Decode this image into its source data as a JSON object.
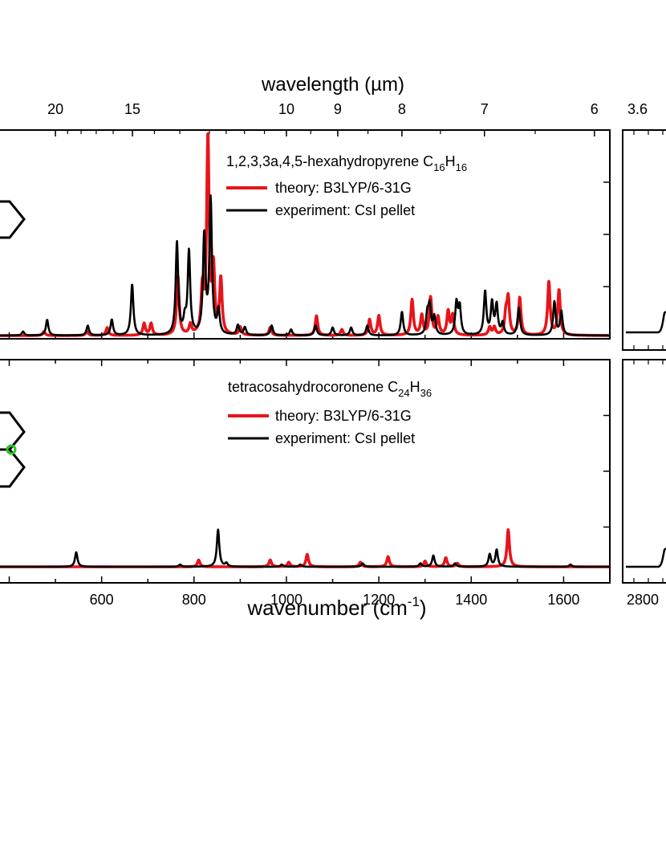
{
  "top_axis": {
    "label": "wavelength (µm)",
    "ticks": [
      {
        "label": "20",
        "wavelength_um": 20
      },
      {
        "label": "15",
        "wavelength_um": 15
      },
      {
        "label": "10",
        "wavelength_um": 10
      },
      {
        "label": "9",
        "wavelength_um": 9
      },
      {
        "label": "8",
        "wavelength_um": 8
      },
      {
        "label": "7",
        "wavelength_um": 7
      },
      {
        "label": "6",
        "wavelength_um": 6
      }
    ],
    "right_panel_tick": {
      "label": "3.6",
      "wavelength_um": 3.6
    }
  },
  "bottom_axis": {
    "label_main": "wavenumber (cm",
    "label_sup": "-1",
    "label_close": ")",
    "tick_labels": [
      "600",
      "800",
      "1000",
      "1200",
      "1400",
      "1600"
    ],
    "right_panel_tick_label": "2800"
  },
  "colors": {
    "theory": "#e8141b",
    "experiment": "#000000",
    "marker": "#22cc22"
  },
  "chart_data": [
    {
      "type": "line",
      "panel": "top",
      "title": "1,2,3,3a,4,5-hexahydropyrene C16H16",
      "title_parts": [
        "1,2,3,3a,4,5-hexahydropyrene C",
        "16",
        "H",
        "16"
      ],
      "xlabel": "wavenumber (cm-1)",
      "ylabel": "",
      "xlim": [
        380,
        1700
      ],
      "ylim": [
        0,
        1.05
      ],
      "legend": [
        {
          "label": "theory: B3LYP/6-31G",
          "color": "#e8141b"
        },
        {
          "label": "experiment: CsI pellet",
          "color": "#000000"
        }
      ],
      "series": [
        {
          "name": "theory: B3LYP/6-31G",
          "color": "#e8141b",
          "peaks": [
            [
              475,
              0.02
            ],
            [
              568,
              0.02
            ],
            [
              612,
              0.04
            ],
            [
              692,
              0.06
            ],
            [
              707,
              0.06
            ],
            [
              765,
              0.3
            ],
            [
              792,
              0.05
            ],
            [
              818,
              0.22
            ],
            [
              830,
              1.0
            ],
            [
              842,
              0.32
            ],
            [
              858,
              0.28
            ],
            [
              900,
              0.04
            ],
            [
              965,
              0.04
            ],
            [
              1065,
              0.1
            ],
            [
              1120,
              0.03
            ],
            [
              1180,
              0.08
            ],
            [
              1200,
              0.1
            ],
            [
              1272,
              0.18
            ],
            [
              1293,
              0.1
            ],
            [
              1312,
              0.19
            ],
            [
              1328,
              0.09
            ],
            [
              1350,
              0.12
            ],
            [
              1360,
              0.1
            ],
            [
              1440,
              0.04
            ],
            [
              1450,
              0.04
            ],
            [
              1475,
              0.1
            ],
            [
              1480,
              0.18
            ],
            [
              1505,
              0.19
            ],
            [
              1568,
              0.27
            ],
            [
              1590,
              0.23
            ]
          ]
        },
        {
          "name": "experiment: CsI pellet",
          "color": "#000000",
          "peaks": [
            [
              430,
              0.02
            ],
            [
              482,
              0.08
            ],
            [
              570,
              0.05
            ],
            [
              622,
              0.08
            ],
            [
              666,
              0.26
            ],
            [
              763,
              0.47
            ],
            [
              780,
              0.07
            ],
            [
              789,
              0.42
            ],
            [
              822,
              0.5
            ],
            [
              836,
              0.68
            ],
            [
              853,
              0.12
            ],
            [
              895,
              0.05
            ],
            [
              910,
              0.04
            ],
            [
              968,
              0.05
            ],
            [
              1010,
              0.03
            ],
            [
              1063,
              0.05
            ],
            [
              1100,
              0.04
            ],
            [
              1140,
              0.04
            ],
            [
              1175,
              0.05
            ],
            [
              1250,
              0.12
            ],
            [
              1305,
              0.1
            ],
            [
              1310,
              0.14
            ],
            [
              1320,
              0.09
            ],
            [
              1368,
              0.16
            ],
            [
              1375,
              0.14
            ],
            [
              1430,
              0.22
            ],
            [
              1445,
              0.16
            ],
            [
              1455,
              0.15
            ],
            [
              1468,
              0.06
            ],
            [
              1503,
              0.14
            ],
            [
              1580,
              0.17
            ],
            [
              1595,
              0.12
            ]
          ]
        }
      ]
    },
    {
      "type": "line",
      "panel": "bottom",
      "title": "tetracosahydrocoronene C24H36",
      "title_parts": [
        "tetracosahydrocoronene C",
        "24",
        "H",
        "36"
      ],
      "xlabel": "wavenumber (cm-1)",
      "ylabel": "",
      "xlim": [
        380,
        1700
      ],
      "ylim": [
        0,
        1.05
      ],
      "legend": [
        {
          "label": "theory: B3LYP/6-31G",
          "color": "#e8141b"
        },
        {
          "label": "experiment: CsI pellet",
          "color": "#000000"
        }
      ],
      "series": [
        {
          "name": "theory: B3LYP/6-31G",
          "color": "#e8141b",
          "peaks": [
            [
              810,
              0.06
            ],
            [
              965,
              0.06
            ],
            [
              1005,
              0.04
            ],
            [
              1045,
              0.11
            ],
            [
              1160,
              0.04
            ],
            [
              1220,
              0.09
            ],
            [
              1300,
              0.05
            ],
            [
              1345,
              0.08
            ],
            [
              1370,
              0.03
            ],
            [
              1480,
              0.33
            ]
          ]
        },
        {
          "name": "experiment: CsI pellet",
          "color": "#000000",
          "peaks": [
            [
              545,
              0.13
            ],
            [
              770,
              0.02
            ],
            [
              852,
              0.33
            ],
            [
              870,
              0.03
            ],
            [
              990,
              0.02
            ],
            [
              1030,
              0.02
            ],
            [
              1165,
              0.03
            ],
            [
              1290,
              0.03
            ],
            [
              1318,
              0.1
            ],
            [
              1365,
              0.03
            ],
            [
              1440,
              0.11
            ],
            [
              1455,
              0.15
            ],
            [
              1615,
              0.02
            ]
          ]
        }
      ]
    }
  ]
}
